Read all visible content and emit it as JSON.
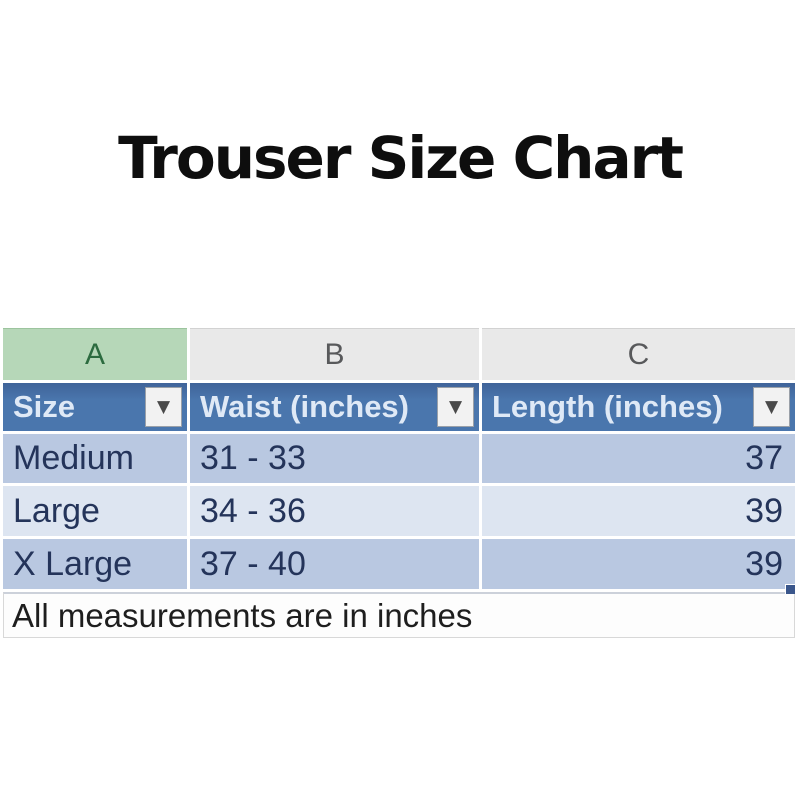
{
  "title": "Trouser Size Chart",
  "sheet": {
    "column_letters": [
      "A",
      "B",
      "C"
    ],
    "headers": [
      {
        "label": "Size"
      },
      {
        "label": "Waist (inches)"
      },
      {
        "label": "Length (inches)"
      }
    ],
    "rows": [
      {
        "size": "Medium",
        "waist": "31 - 33",
        "length": "37"
      },
      {
        "size": "Large",
        "waist": "34 - 36",
        "length": "39"
      },
      {
        "size": "X Large",
        "waist": "37 - 40",
        "length": "39"
      }
    ],
    "footnote": "All measurements are in inches"
  },
  "icons": {
    "filter_dropdown": "▼"
  },
  "colors": {
    "header_bg": "#4a76ad",
    "header_text": "#dfe9f6",
    "band_dark": "#b9c8e1",
    "band_light": "#dde5f1",
    "column_a_header_bg": "#b6d7b8",
    "column_a_header_text": "#2c6b3f",
    "column_header_bg": "#e9e9e9",
    "data_text": "#24345a",
    "fill_handle": "#3a568b"
  }
}
